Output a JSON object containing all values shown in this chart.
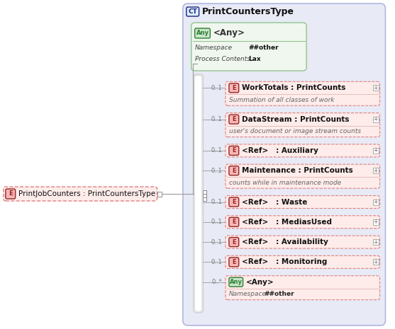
{
  "title": "PrintCountersType",
  "title_badge": "CT",
  "main_element": "PrintJobCounters : PrintCountersType",
  "main_badge": "E",
  "any_top": {
    "label": "<Any>",
    "badge": "Any",
    "namespace": "##other",
    "process_contents": "Lax"
  },
  "elements": [
    {
      "multiplicity": "0..1",
      "badge": "E",
      "label": "WorkTotals : PrintCounts",
      "has_plus": true,
      "description": "Summation of all classes of work"
    },
    {
      "multiplicity": "0..1",
      "badge": "E",
      "label": "DataStream : PrintCounts",
      "has_plus": true,
      "description": "user's document or image stream counts"
    },
    {
      "multiplicity": "0..1",
      "badge": "E",
      "label": "<Ref>   : Auxiliary",
      "has_plus": true,
      "description": null
    },
    {
      "multiplicity": "0..1",
      "badge": "E",
      "label": "Maintenance : PrintCounts",
      "has_plus": true,
      "description": "counts while in maintenance mode"
    },
    {
      "multiplicity": "0..1",
      "badge": "E",
      "label": "<Ref>   : Waste",
      "has_plus": true,
      "description": null
    },
    {
      "multiplicity": "0..1",
      "badge": "E",
      "label": "<Ref>   : MediasUsed",
      "has_plus": true,
      "description": null
    },
    {
      "multiplicity": "0..1",
      "badge": "E",
      "label": "<Ref>   : Availability",
      "has_plus": true,
      "description": null
    },
    {
      "multiplicity": "0..1",
      "badge": "E",
      "label": "<Ref>   : Monitoring",
      "has_plus": true,
      "description": null
    },
    {
      "multiplicity": "0..*",
      "badge": "Any",
      "label": "<Any>",
      "has_plus": false,
      "description": "Namespace   ##other"
    }
  ],
  "bg_color": "#e8eaf6",
  "outer_box_color": "#b0b8e0",
  "element_bg": "#fdecea",
  "element_border": "#e08080",
  "badge_e_bg": "#f4b8b8",
  "badge_e_fg": "#992222",
  "badge_ct_bg": "#ddeeff",
  "badge_ct_fg": "#1a237e",
  "badge_any_bg": "#c8e6c9",
  "badge_any_fg": "#2e7d32",
  "any_box_bg": "#f0f7ee",
  "any_box_border": "#90c490",
  "desc_color": "#666666",
  "title_color": "#111111",
  "multiplicity_color": "#777777",
  "connector_color": "#999999",
  "white": "#ffffff"
}
